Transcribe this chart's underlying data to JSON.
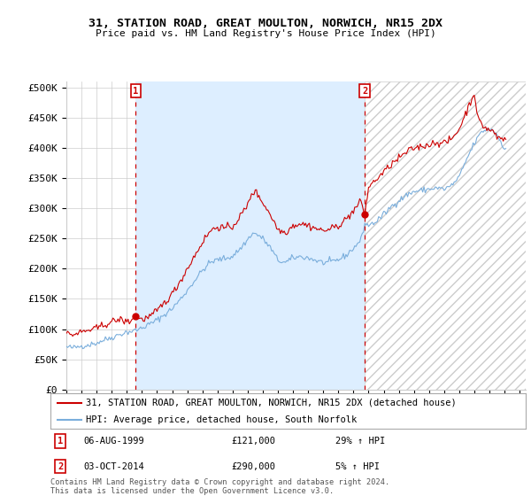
{
  "title": "31, STATION ROAD, GREAT MOULTON, NORWICH, NR15 2DX",
  "subtitle": "Price paid vs. HM Land Registry's House Price Index (HPI)",
  "ylabel_ticks": [
    "£0",
    "£50K",
    "£100K",
    "£150K",
    "£200K",
    "£250K",
    "£300K",
    "£350K",
    "£400K",
    "£450K",
    "£500K"
  ],
  "ytick_values": [
    0,
    50000,
    100000,
    150000,
    200000,
    250000,
    300000,
    350000,
    400000,
    450000,
    500000
  ],
  "ylim": [
    0,
    510000
  ],
  "xlim_start": 1995.0,
  "xlim_end": 2025.4,
  "legend_line1": "31, STATION ROAD, GREAT MOULTON, NORWICH, NR15 2DX (detached house)",
  "legend_line2": "HPI: Average price, detached house, South Norfolk",
  "marker1_x": 1999.59,
  "marker1_y": 121000,
  "marker1_label": "1",
  "marker2_x": 2014.75,
  "marker2_y": 290000,
  "marker2_label": "2",
  "footer1": "Contains HM Land Registry data © Crown copyright and database right 2024.",
  "footer2": "This data is licensed under the Open Government Licence v3.0.",
  "red_color": "#cc0000",
  "blue_color": "#7aaedc",
  "background_color": "#ffffff",
  "grid_color": "#cccccc",
  "fill_color": "#ddeeff",
  "hatch_color": "#cccccc"
}
